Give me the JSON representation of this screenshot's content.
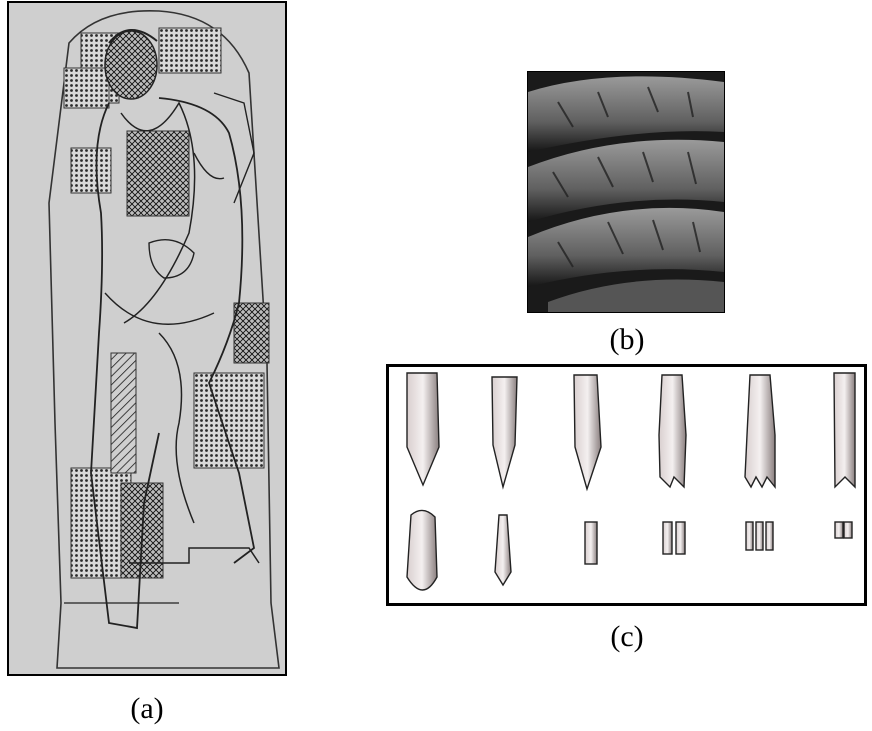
{
  "figure": {
    "panel_a": {
      "caption": "(a)",
      "icon": "statue-relief-drawing"
    },
    "panel_b": {
      "caption": "(b)",
      "icon": "chisel-marks-photo"
    },
    "panel_c": {
      "caption": "(c)",
      "icon": "chisel-tools-drawing",
      "tools_top_count": 6,
      "tools_bottom_count": 6
    }
  }
}
